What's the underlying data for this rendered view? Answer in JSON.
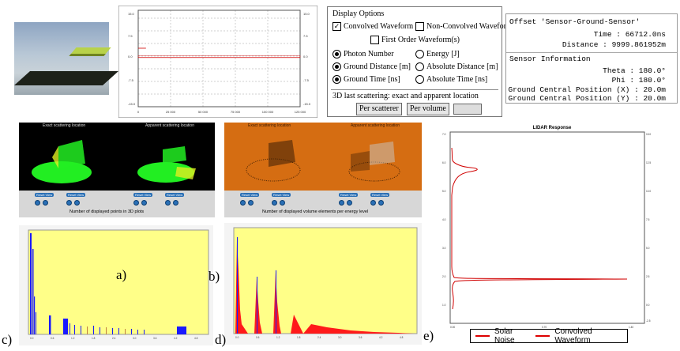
{
  "display_options": {
    "title": "Display Options",
    "convolved": "Convolved Waveform",
    "non_convolved": "Non-Convolved Waveform",
    "first_order": "First Order Waveform(s)",
    "photon_number": "Photon Number",
    "energy": "Energy [J]",
    "ground_distance": "Ground Distance [m]",
    "absolute_distance": "Absolute Distance [m]",
    "ground_time": "Ground Time [ns]",
    "absolute_time": "Absolute Time [ns]",
    "last_scattering": "3D last scattering: exact and apparent location",
    "per_scatterer": "Per scatterer",
    "per_volume": "Per volume"
  },
  "offset_panel": {
    "offset_title": "Offset 'Sensor-Ground-Sensor'",
    "time": "Time : 66712.0ns",
    "distance": "Distance : 9999.861952m",
    "sensor_title": "Sensor Information",
    "theta": "Theta : 180.0°",
    "phi": "Phi : 180.0°",
    "ground_x": "Ground Central Position (X) : 20.0m",
    "ground_y": "Ground Central Position (Y) : 20.0m"
  },
  "vis_a": {
    "exact_caption": "Exact scattering location",
    "apparent_caption": "Apparent scattering location",
    "reset": "Reset View",
    "mid_label": "Number of displayed points in 3D plots"
  },
  "vis_b": {
    "exact_caption": "Exact scattering location",
    "apparent_caption": "Apparent scattering location",
    "reset": "Reset View",
    "mid_label": "Number of displayed volume elements per energy level"
  },
  "panel_letters": {
    "a": "a)",
    "b": "b)",
    "c": "c)",
    "d": "d)",
    "e": "e)"
  },
  "lidar": {
    "title": "LIDAR Response",
    "legend_solar": "Solar Noise",
    "legend_conv": "Convolved Waveform"
  },
  "colors": {
    "wave_red": "#d00000",
    "hist_yellow": "#ffff88",
    "hist_blue": "#1a1aff",
    "hist_red": "#ff1a1a",
    "vis_green": "#22ee22",
    "vis_orange": "#d56d12"
  },
  "chart_data": [
    {
      "type": "line",
      "id": "top-waveform",
      "ylim": [
        -15,
        15
      ],
      "xlim": [
        0,
        125000
      ],
      "x_ticks": [
        "0",
        "25 000",
        "50 000",
        "75 000",
        "100 000",
        "125 000"
      ],
      "series": [
        {
          "values": [
            [
              0,
              3.2
            ],
            [
              3500,
              3.2
            ],
            [
              6000,
              3.2
            ],
            [
              0,
              0.3
            ],
            [
              125000,
              0.3
            ]
          ]
        }
      ]
    },
    {
      "type": "line",
      "id": "lidar-response",
      "title": "LIDAR Response",
      "ylim": [
        -4,
        14
      ],
      "series": [
        {
          "name": "Convolved Waveform",
          "peaks": [
            {
              "y": 11.5,
              "x": 1.1
            },
            {
              "y": 0.3,
              "x": 1.4
            }
          ]
        },
        {
          "name": "Solar Noise",
          "values": []
        }
      ]
    }
  ]
}
